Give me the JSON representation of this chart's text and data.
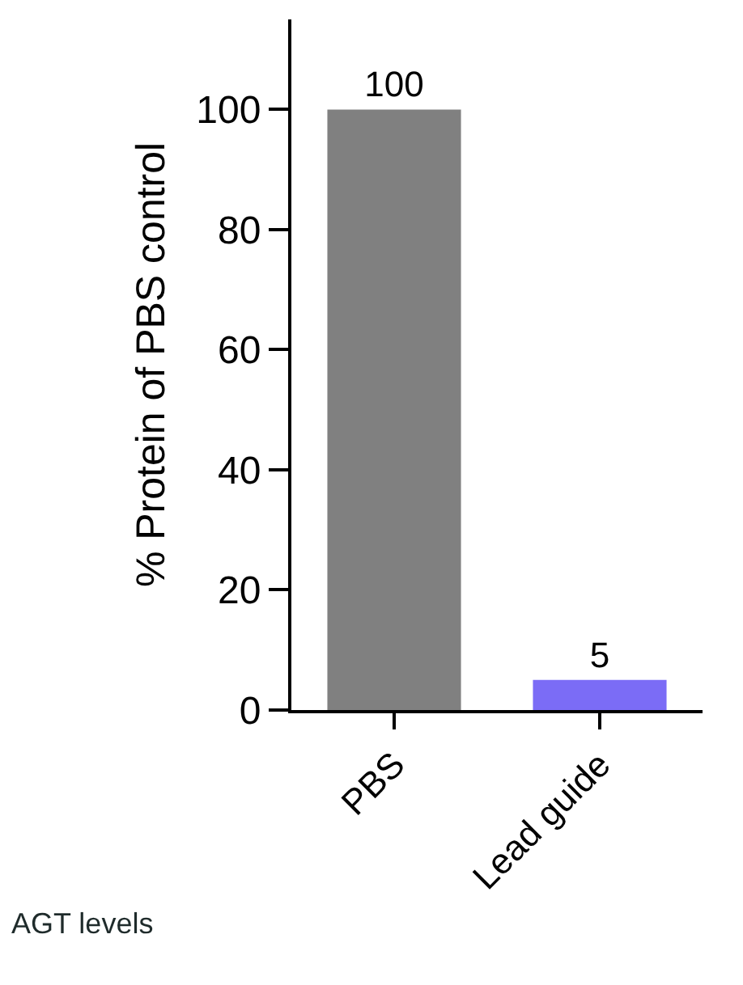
{
  "chart_data": {
    "type": "bar",
    "ylabel": "% Protein of PBS control",
    "categories": [
      "PBS",
      "Lead guide"
    ],
    "values": [
      100,
      5
    ],
    "colors": [
      "#808080",
      "#7b6cf6"
    ],
    "ylim": [
      0,
      115
    ],
    "yticks": [
      0,
      20,
      40,
      60,
      80,
      100
    ],
    "data_labels": true,
    "legend": false,
    "annotations": [
      "AGT levels"
    ]
  }
}
